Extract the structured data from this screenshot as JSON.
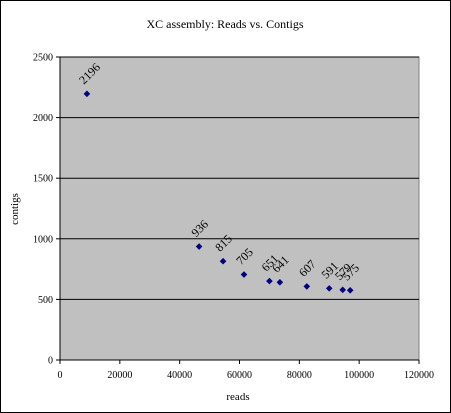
{
  "chart_data": {
    "type": "scatter",
    "title": "XC assembly: Reads vs. Contigs",
    "xlabel": "reads",
    "ylabel": "contigs",
    "xlim": [
      0,
      120000
    ],
    "ylim": [
      0,
      2500
    ],
    "x_ticks": [
      0,
      20000,
      40000,
      60000,
      80000,
      100000,
      120000
    ],
    "y_ticks": [
      0,
      500,
      1000,
      1500,
      2000,
      2500
    ],
    "grid": "horizontal major gridlines",
    "legend": "none",
    "series": [
      {
        "points": [
          {
            "x": 9000,
            "y": 2196,
            "label": "2196"
          },
          {
            "x": 46500,
            "y": 936,
            "label": "936"
          },
          {
            "x": 54500,
            "y": 815,
            "label": "815"
          },
          {
            "x": 61500,
            "y": 705,
            "label": "705"
          },
          {
            "x": 70000,
            "y": 651,
            "label": "651"
          },
          {
            "x": 73500,
            "y": 641,
            "label": "641"
          },
          {
            "x": 82500,
            "y": 607,
            "label": "607"
          },
          {
            "x": 90000,
            "y": 591,
            "label": "591"
          },
          {
            "x": 94500,
            "y": 579,
            "label": "579"
          },
          {
            "x": 97000,
            "y": 575,
            "label": "575"
          }
        ]
      }
    ],
    "colors": {
      "plot_background": "#c0c0c0",
      "marker": "#000080",
      "gridline": "#000000"
    }
  }
}
